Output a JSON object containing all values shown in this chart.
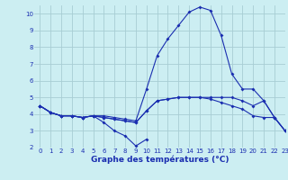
{
  "title": "Graphe des températures (°C)",
  "bg_color": "#cceef2",
  "line_color": "#1a2eb0",
  "grid_color": "#a8cdd4",
  "xlim": [
    -0.5,
    23
  ],
  "ylim": [
    2,
    10.5
  ],
  "xticks": [
    0,
    1,
    2,
    3,
    4,
    5,
    6,
    7,
    8,
    9,
    10,
    11,
    12,
    13,
    14,
    15,
    16,
    17,
    18,
    19,
    20,
    21,
    22,
    23
  ],
  "yticks": [
    2,
    3,
    4,
    5,
    6,
    7,
    8,
    9,
    10
  ],
  "series": [
    [
      4.5,
      4.1,
      3.9,
      3.9,
      3.8,
      3.9,
      3.5,
      3.0,
      2.7,
      2.1,
      2.5,
      null,
      null,
      null,
      null,
      null,
      null,
      null,
      null,
      null,
      null,
      null,
      null,
      null
    ],
    [
      4.5,
      4.1,
      3.9,
      3.9,
      3.8,
      3.9,
      3.8,
      3.7,
      3.6,
      3.5,
      4.2,
      4.8,
      4.9,
      5.0,
      5.0,
      5.0,
      4.9,
      4.7,
      4.5,
      4.3,
      3.9,
      3.8,
      3.8,
      3.0
    ],
    [
      4.5,
      4.1,
      3.9,
      3.9,
      3.8,
      3.9,
      3.8,
      3.7,
      3.6,
      3.5,
      4.2,
      4.8,
      4.9,
      5.0,
      5.0,
      5.0,
      5.0,
      5.0,
      5.0,
      4.8,
      4.5,
      4.8,
      3.8,
      3.0
    ],
    [
      4.5,
      4.1,
      3.9,
      3.9,
      3.8,
      3.9,
      3.9,
      3.8,
      3.7,
      3.6,
      5.5,
      7.5,
      8.5,
      9.3,
      10.1,
      10.4,
      10.2,
      8.7,
      6.4,
      5.5,
      5.5,
      4.8,
      3.8,
      3.0
    ]
  ]
}
